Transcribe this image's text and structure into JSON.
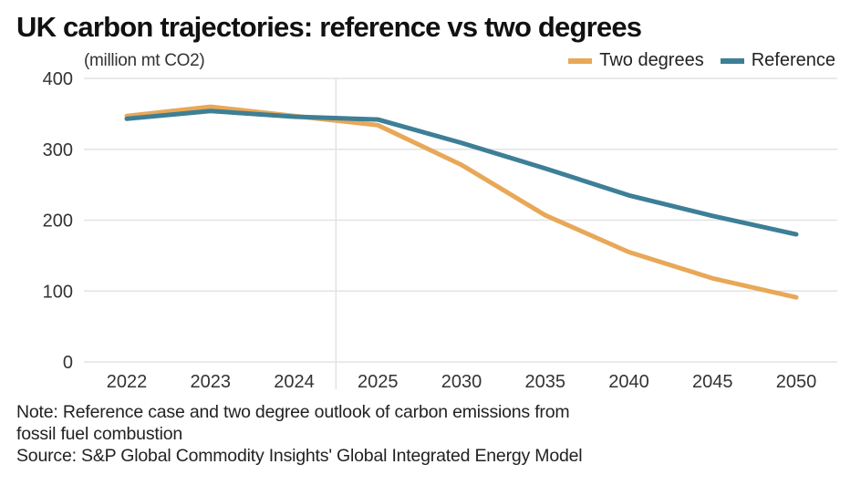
{
  "chart_data": {
    "type": "line",
    "title": "UK carbon trajectories: reference vs two degrees",
    "ylabel": "(million mt CO2)",
    "xlabel": "",
    "categories": [
      "2022",
      "2023",
      "2024",
      "2025",
      "2030",
      "2035",
      "2040",
      "2045",
      "2050"
    ],
    "ylim": [
      0,
      400
    ],
    "yticks": [
      0,
      100,
      200,
      300,
      400
    ],
    "grid": true,
    "legend_position": "top-right",
    "series": [
      {
        "name": "Two degrees",
        "color": "#E8A857",
        "values": [
          347,
          360,
          347,
          334,
          278,
          207,
          155,
          118,
          91
        ]
      },
      {
        "name": "Reference",
        "color": "#3D7F96",
        "values": [
          343,
          354,
          346,
          342,
          309,
          273,
          235,
          206,
          180
        ]
      }
    ],
    "notes": [
      "Note: Reference case and two degree outlook of carbon emissions from",
      "fossil fuel combustion",
      "Source: S&P Global Commodity Insights' Global Integrated Energy Model"
    ]
  }
}
